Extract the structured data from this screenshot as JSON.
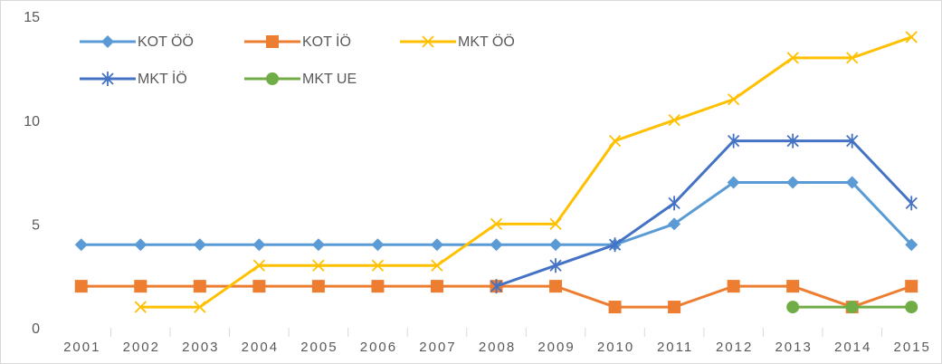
{
  "chart_data": {
    "type": "line",
    "categories": [
      "2001",
      "2002",
      "2003",
      "2004",
      "2005",
      "2006",
      "2007",
      "2008",
      "2009",
      "2010",
      "2011",
      "2012",
      "2013",
      "2014",
      "2015"
    ],
    "series": [
      {
        "name": "KOT ÖÖ",
        "color": "#5b9bd5",
        "marker": "diamond",
        "values": [
          4,
          4,
          4,
          4,
          4,
          4,
          4,
          4,
          4,
          4,
          5,
          7,
          7,
          7,
          4
        ]
      },
      {
        "name": "KOT İÖ",
        "color": "#ed7d31",
        "marker": "square",
        "values": [
          2,
          2,
          2,
          2,
          2,
          2,
          2,
          2,
          2,
          1,
          1,
          2,
          2,
          1,
          2
        ]
      },
      {
        "name": "MKT ÖÖ",
        "color": "#ffc000",
        "marker": "x",
        "values": [
          null,
          1,
          1,
          3,
          3,
          3,
          3,
          5,
          5,
          9,
          10,
          11,
          13,
          13,
          14
        ]
      },
      {
        "name": "MKT İÖ",
        "color": "#4472c4",
        "marker": "asterisk",
        "values": [
          null,
          null,
          null,
          null,
          null,
          null,
          null,
          2,
          3,
          4,
          6,
          9,
          9,
          9,
          6
        ]
      },
      {
        "name": "MKT UE",
        "color": "#70ad47",
        "marker": "circle",
        "values": [
          null,
          null,
          null,
          null,
          null,
          null,
          null,
          null,
          null,
          null,
          null,
          null,
          1,
          1,
          1
        ]
      }
    ],
    "ylim": [
      0,
      15
    ],
    "yticks": [
      0,
      5,
      10,
      15
    ],
    "grid": false,
    "legend": "top-left"
  }
}
